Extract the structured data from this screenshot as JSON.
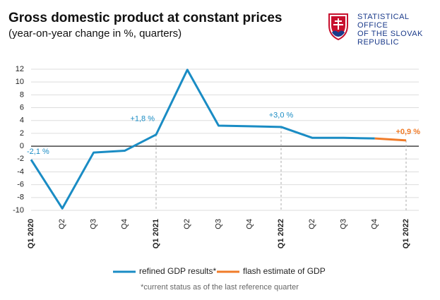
{
  "chart_data": {
    "type": "line",
    "title": "Gross domestic product at constant prices",
    "subtitle": "(year-on-year change in %, quarters)",
    "logo": [
      "STATISTICAL",
      "OFFICE",
      "OF THE SLOVAK",
      "REPUBLIC"
    ],
    "footnote": "*current status as of the last reference quarter",
    "categories": [
      "Q1 2020",
      "Q2",
      "Q3",
      "Q4",
      "Q1 2021",
      "Q2",
      "Q3",
      "Q4",
      "Q1 2022",
      "Q2",
      "Q3",
      "Q4",
      "Q1 2022"
    ],
    "series": [
      {
        "name": "refined GDP results*",
        "color": "#1a8cc4",
        "values": [
          -2.1,
          -9.7,
          -1.0,
          -0.7,
          1.8,
          11.9,
          3.2,
          3.1,
          3.0,
          1.3,
          1.3,
          1.2,
          null
        ],
        "value_labels": [
          "-2,1 %",
          null,
          null,
          null,
          "+1,8 %",
          null,
          null,
          null,
          "+3,0 %",
          null,
          null,
          null,
          null
        ]
      },
      {
        "name": "flash estimate of GDP",
        "color": "#f07c2a",
        "values": [
          null,
          null,
          null,
          null,
          null,
          null,
          null,
          null,
          null,
          null,
          null,
          1.2,
          0.9
        ],
        "value_labels": [
          null,
          null,
          null,
          null,
          null,
          null,
          null,
          null,
          null,
          null,
          null,
          null,
          "+0,9 %"
        ]
      }
    ],
    "ylim": [
      -10,
      12
    ],
    "yticks": [
      -10,
      -8,
      -6,
      -4,
      -2,
      0,
      2,
      4,
      6,
      8,
      10,
      12
    ],
    "grid": true,
    "legend": "bottom"
  }
}
